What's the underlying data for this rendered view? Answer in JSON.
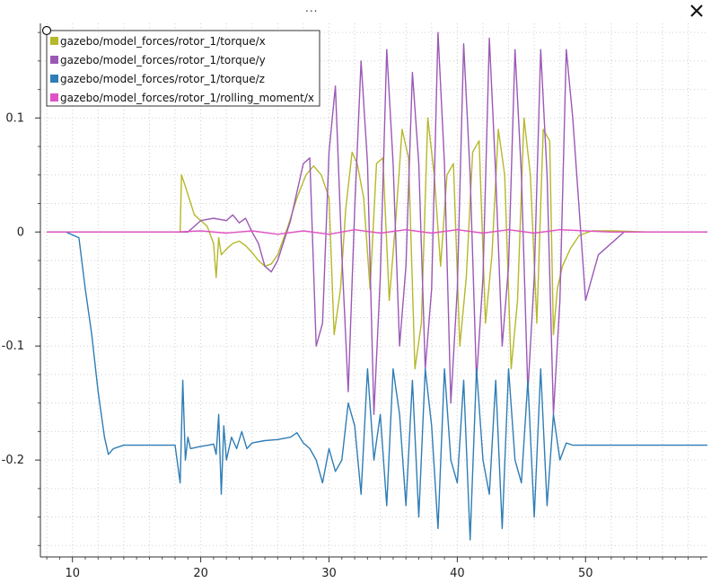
{
  "window": {
    "menu_label": "...",
    "close_icon": "close-icon"
  },
  "chart_data": {
    "type": "line",
    "title": "",
    "xlabel": "",
    "ylabel": "",
    "xlim": [
      7.5,
      59.5
    ],
    "ylim": [
      -0.285,
      0.183
    ],
    "grid": true,
    "legend_position": "top-left",
    "x_ticks": [
      10,
      20,
      30,
      40,
      50
    ],
    "y_ticks": [
      -0.2,
      -0.1,
      0,
      0.1
    ],
    "x_tick_labels": [
      "10",
      "20",
      "30",
      "40",
      "50"
    ],
    "y_tick_labels": [
      "-0.2",
      "-0.1",
      "0",
      "0.1"
    ],
    "series": [
      {
        "name": "gazebo/model_forces/rotor_1/torque/x",
        "color": "#b5b82a",
        "x": [
          8,
          18.4,
          18.5,
          18.8,
          19.5,
          20.5,
          21,
          21.2,
          21.4,
          21.6,
          22,
          22.5,
          23,
          23.5,
          24,
          24.5,
          25,
          25.5,
          26,
          26.8,
          27.5,
          28.2,
          28.8,
          29.4,
          30,
          30.4,
          30.9,
          31.3,
          31.8,
          32.2,
          32.7,
          33.2,
          33.7,
          34.2,
          34.7,
          35.2,
          35.7,
          36.2,
          36.7,
          37.2,
          37.7,
          38.2,
          38.7,
          39.2,
          39.7,
          40.2,
          40.7,
          41.2,
          41.7,
          42.2,
          42.7,
          43.2,
          43.7,
          44.2,
          44.7,
          45.2,
          45.7,
          46.2,
          46.7,
          47.2,
          47.5,
          47.8,
          48.2,
          48.8,
          49.5,
          50.5,
          52,
          55,
          59.5
        ],
        "y": [
          0,
          0,
          0.05,
          0.04,
          0.015,
          0.005,
          -0.01,
          -0.04,
          -0.005,
          -0.02,
          -0.015,
          -0.01,
          -0.008,
          -0.012,
          -0.018,
          -0.025,
          -0.03,
          -0.028,
          -0.02,
          0.005,
          0.03,
          0.05,
          0.058,
          0.05,
          0.03,
          -0.09,
          -0.05,
          0.02,
          0.07,
          0.06,
          0.03,
          -0.05,
          0.06,
          0.065,
          -0.06,
          0.01,
          0.09,
          0.065,
          -0.12,
          -0.08,
          0.1,
          0.05,
          -0.03,
          0.05,
          0.06,
          -0.1,
          -0.04,
          0.07,
          0.08,
          -0.08,
          -0.02,
          0.09,
          0.05,
          -0.12,
          -0.06,
          0.1,
          0.05,
          -0.08,
          0.09,
          0.08,
          -0.09,
          -0.05,
          -0.03,
          -0.015,
          -0.003,
          0.001,
          0.001,
          0,
          0
        ]
      },
      {
        "name": "gazebo/model_forces/rotor_1/torque/y",
        "color": "#9b59b6",
        "x": [
          8,
          19,
          20,
          21,
          22,
          22.5,
          23,
          23.5,
          24,
          24.5,
          25,
          25.5,
          26,
          27,
          28,
          28.5,
          29,
          29.5,
          30,
          30.5,
          31,
          31.5,
          32,
          32.5,
          33,
          33.5,
          34,
          34.5,
          35,
          35.5,
          36,
          36.5,
          37,
          37.5,
          38,
          38.5,
          39,
          39.5,
          40,
          40.5,
          41,
          41.5,
          42,
          42.5,
          43,
          43.5,
          44,
          44.5,
          45,
          45.5,
          46,
          46.5,
          47,
          47.5,
          48,
          48.5,
          49,
          50,
          51,
          53,
          59.5
        ],
        "y": [
          0,
          0,
          0.01,
          0.012,
          0.01,
          0.015,
          0.008,
          0.012,
          0,
          -0.01,
          -0.03,
          -0.035,
          -0.025,
          0.01,
          0.06,
          0.065,
          -0.1,
          -0.08,
          0.07,
          0.128,
          -0.02,
          -0.14,
          0.02,
          0.15,
          0.06,
          -0.16,
          -0.04,
          0.16,
          0.06,
          -0.1,
          -0.03,
          0.14,
          0.06,
          -0.12,
          -0.05,
          0.175,
          0.06,
          -0.15,
          -0.05,
          0.165,
          0.05,
          -0.13,
          -0.04,
          0.17,
          0.05,
          -0.1,
          -0.03,
          0.16,
          0.05,
          -0.14,
          -0.04,
          0.16,
          0.05,
          -0.16,
          -0.06,
          0.16,
          0.1,
          -0.06,
          -0.02,
          0,
          0
        ]
      },
      {
        "name": "gazebo/model_forces/rotor_1/torque/z",
        "color": "#2f7db5",
        "x": [
          8,
          9.5,
          10.5,
          11,
          11.5,
          12,
          12.5,
          12.8,
          13.2,
          14,
          16,
          18,
          18.4,
          18.6,
          18.8,
          19,
          19.2,
          19.6,
          20,
          20.6,
          21,
          21.2,
          21.4,
          21.6,
          21.8,
          22,
          22.4,
          22.8,
          23.2,
          23.6,
          24,
          25,
          26,
          27,
          27.5,
          28,
          28.5,
          29,
          29.5,
          30,
          30.5,
          31,
          31.5,
          32,
          32.5,
          33,
          33.5,
          34,
          34.5,
          35,
          35.5,
          36,
          36.5,
          37,
          37.5,
          38,
          38.5,
          39,
          39.5,
          40,
          40.5,
          41,
          41.5,
          42,
          42.5,
          43,
          43.5,
          44,
          44.5,
          45,
          45.5,
          46,
          46.5,
          47,
          47.5,
          48,
          48.5,
          49,
          50,
          52,
          55,
          59.5
        ],
        "y": [
          0,
          0,
          -0.005,
          -0.05,
          -0.09,
          -0.14,
          -0.18,
          -0.195,
          -0.19,
          -0.187,
          -0.187,
          -0.187,
          -0.22,
          -0.13,
          -0.2,
          -0.18,
          -0.19,
          -0.189,
          -0.188,
          -0.187,
          -0.186,
          -0.195,
          -0.16,
          -0.23,
          -0.17,
          -0.2,
          -0.18,
          -0.19,
          -0.175,
          -0.19,
          -0.185,
          -0.183,
          -0.182,
          -0.18,
          -0.176,
          -0.185,
          -0.19,
          -0.2,
          -0.22,
          -0.19,
          -0.21,
          -0.2,
          -0.15,
          -0.17,
          -0.23,
          -0.12,
          -0.2,
          -0.16,
          -0.24,
          -0.12,
          -0.16,
          -0.24,
          -0.13,
          -0.25,
          -0.12,
          -0.17,
          -0.26,
          -0.12,
          -0.2,
          -0.22,
          -0.13,
          -0.27,
          -0.12,
          -0.2,
          -0.23,
          -0.13,
          -0.26,
          -0.12,
          -0.2,
          -0.22,
          -0.13,
          -0.25,
          -0.12,
          -0.24,
          -0.16,
          -0.2,
          -0.185,
          -0.187,
          -0.187,
          -0.187,
          -0.187,
          -0.187
        ]
      },
      {
        "name": "gazebo/model_forces/rotor_1/rolling_moment/x",
        "color": "#e052c4",
        "x": [
          8,
          18,
          20,
          22,
          24,
          26,
          28,
          30,
          32,
          34,
          36,
          38,
          40,
          42,
          44,
          46,
          48,
          50,
          52,
          55,
          59.5
        ],
        "y": [
          0,
          0,
          0.001,
          -0.001,
          0.001,
          -0.002,
          0.001,
          -0.002,
          0.002,
          -0.001,
          0.002,
          -0.001,
          0.002,
          -0.001,
          0.002,
          -0.001,
          0.002,
          0.001,
          0,
          0,
          0
        ]
      }
    ]
  }
}
